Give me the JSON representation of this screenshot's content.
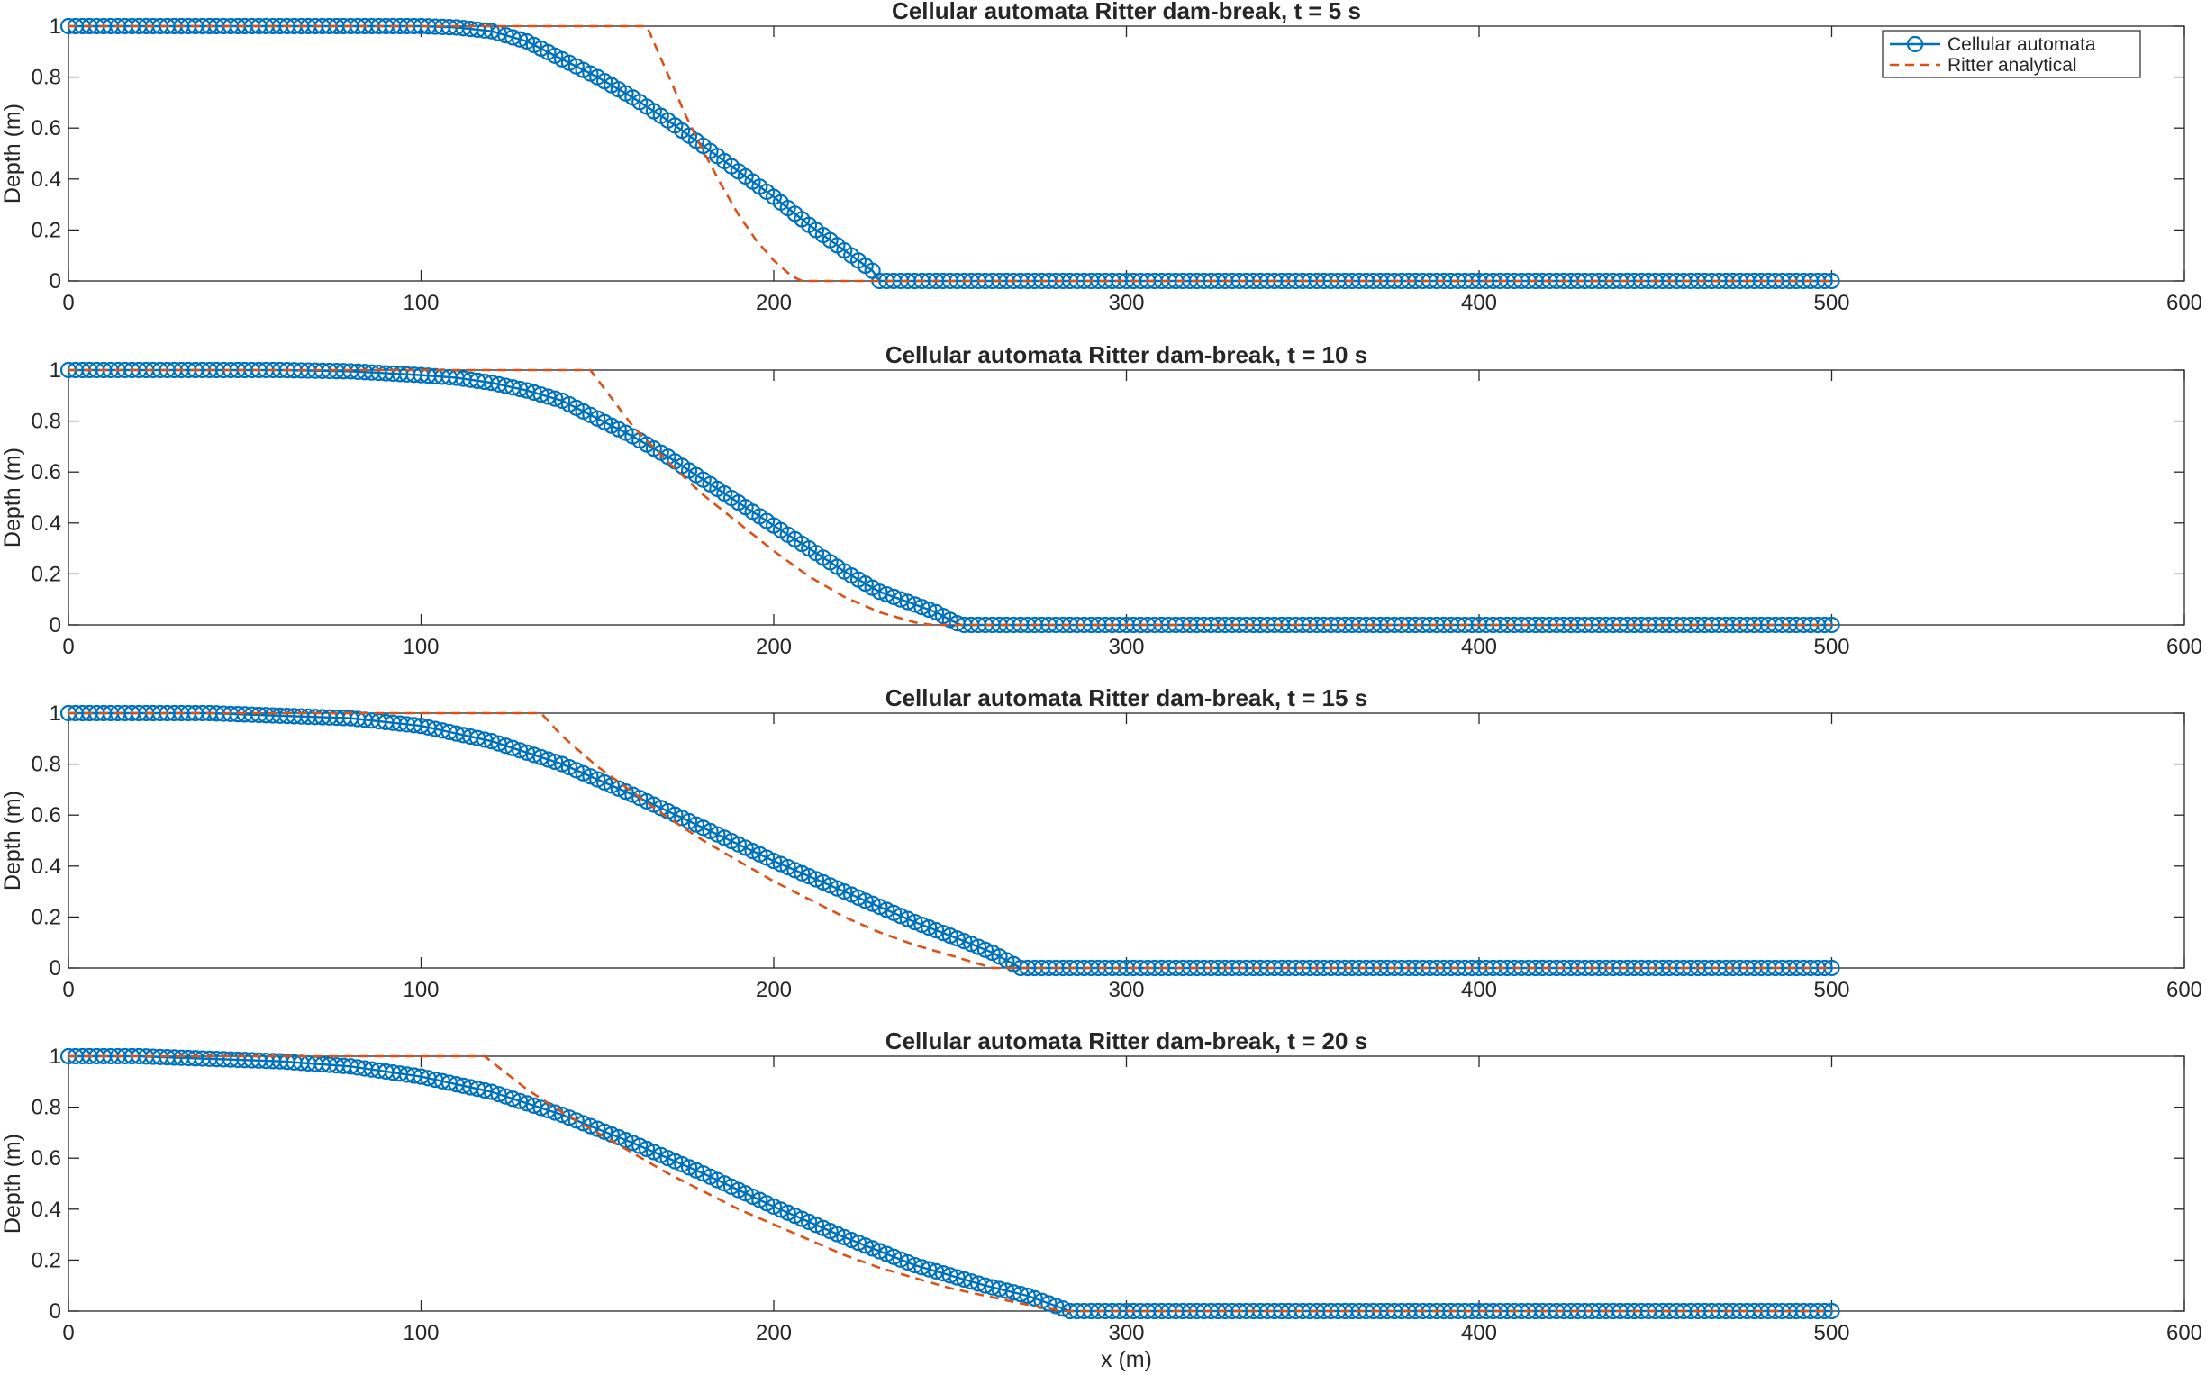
{
  "chart_data": [
    {
      "type": "line",
      "title": "Cellular automata Ritter dam-break, t = 5 s",
      "xlabel": "",
      "ylabel": "Depth (m)",
      "xlim": [
        0,
        600
      ],
      "ylim": [
        0,
        1
      ],
      "xticks": [
        "0",
        "100",
        "200",
        "300",
        "400",
        "500",
        "600"
      ],
      "yticks": [
        "0",
        "0.2",
        "0.4",
        "0.6",
        "0.8",
        "1"
      ],
      "legend_position": "top-right",
      "series": [
        {
          "name": "Cellular automata",
          "color": "#0072BD",
          "marker": "circle",
          "x": [
            0,
            60,
            100,
            110,
            120,
            130,
            140,
            150,
            160,
            170,
            180,
            190,
            200,
            210,
            220,
            225,
            228,
            230,
            300,
            400,
            500
          ],
          "y": [
            1.0,
            1.0,
            1.0,
            0.995,
            0.98,
            0.94,
            0.87,
            0.8,
            0.72,
            0.63,
            0.53,
            0.43,
            0.33,
            0.22,
            0.12,
            0.07,
            0.04,
            0.0,
            0.0,
            0.0,
            0.0
          ]
        },
        {
          "name": "Ritter analytical",
          "color": "#D95319",
          "style": "dashed",
          "x": [
            0,
            150,
            164,
            170,
            175,
            180,
            185,
            190,
            195,
            200,
            205,
            208,
            300,
            400,
            500
          ],
          "y": [
            1.0,
            1.0,
            1.0,
            0.81,
            0.65,
            0.51,
            0.38,
            0.26,
            0.16,
            0.08,
            0.02,
            0.0,
            0.0,
            0.0,
            0.0
          ]
        }
      ]
    },
    {
      "type": "line",
      "title": "Cellular automata Ritter dam-break, t = 10 s",
      "xlabel": "",
      "ylabel": "Depth (m)",
      "xlim": [
        0,
        600
      ],
      "ylim": [
        0,
        1
      ],
      "xticks": [
        "0",
        "100",
        "200",
        "300",
        "400",
        "500",
        "600"
      ],
      "yticks": [
        "0",
        "0.2",
        "0.4",
        "0.6",
        "0.8",
        "1"
      ],
      "series": [
        {
          "name": "Cellular automata",
          "color": "#0072BD",
          "marker": "circle",
          "x": [
            0,
            60,
            80,
            100,
            110,
            120,
            130,
            140,
            150,
            160,
            170,
            180,
            190,
            200,
            210,
            220,
            230,
            240,
            246,
            250,
            253,
            300,
            400,
            500
          ],
          "y": [
            1.0,
            1.0,
            0.995,
            0.98,
            0.97,
            0.95,
            0.92,
            0.88,
            0.81,
            0.74,
            0.66,
            0.57,
            0.48,
            0.39,
            0.3,
            0.21,
            0.13,
            0.08,
            0.05,
            0.02,
            0.0,
            0.0,
            0.0,
            0.0
          ]
        },
        {
          "name": "Ritter analytical",
          "color": "#D95319",
          "style": "dashed",
          "x": [
            0,
            140,
            148,
            160,
            170,
            180,
            190,
            200,
            210,
            220,
            230,
            240,
            245,
            300,
            400,
            500
          ],
          "y": [
            1.0,
            1.0,
            1.0,
            0.78,
            0.64,
            0.51,
            0.4,
            0.29,
            0.19,
            0.11,
            0.05,
            0.01,
            0.0,
            0.0,
            0.0,
            0.0
          ]
        }
      ]
    },
    {
      "type": "line",
      "title": "Cellular automata Ritter dam-break, t = 15 s",
      "xlabel": "",
      "ylabel": "Depth (m)",
      "xlim": [
        0,
        600
      ],
      "ylim": [
        0,
        1
      ],
      "xticks": [
        "0",
        "100",
        "200",
        "300",
        "400",
        "500",
        "600"
      ],
      "yticks": [
        "0",
        "0.2",
        "0.4",
        "0.6",
        "0.8",
        "1"
      ],
      "series": [
        {
          "name": "Cellular automata",
          "color": "#0072BD",
          "marker": "circle",
          "x": [
            0,
            40,
            60,
            80,
            100,
            120,
            140,
            160,
            180,
            200,
            220,
            240,
            255,
            262,
            266,
            270,
            300,
            400,
            500
          ],
          "y": [
            1.0,
            1.0,
            0.99,
            0.98,
            0.95,
            0.89,
            0.8,
            0.68,
            0.55,
            0.42,
            0.3,
            0.18,
            0.1,
            0.06,
            0.03,
            0.0,
            0.0,
            0.0,
            0.0
          ]
        },
        {
          "name": "Ritter analytical",
          "color": "#D95319",
          "style": "dashed",
          "x": [
            0,
            125,
            134,
            140,
            150,
            160,
            170,
            180,
            190,
            200,
            210,
            220,
            230,
            240,
            250,
            262,
            300,
            400,
            500
          ],
          "y": [
            1.0,
            1.0,
            1.0,
            0.91,
            0.79,
            0.69,
            0.59,
            0.5,
            0.42,
            0.34,
            0.27,
            0.2,
            0.14,
            0.09,
            0.05,
            0.0,
            0.0,
            0.0,
            0.0
          ]
        }
      ]
    },
    {
      "type": "line",
      "title": "Cellular automata Ritter dam-break, t = 20 s",
      "xlabel": "x (m)",
      "ylabel": "Depth (m)",
      "xlim": [
        0,
        600
      ],
      "ylim": [
        0,
        1
      ],
      "xticks": [
        "0",
        "100",
        "200",
        "300",
        "400",
        "500",
        "600"
      ],
      "yticks": [
        "0",
        "0.2",
        "0.4",
        "0.6",
        "0.8",
        "1"
      ],
      "series": [
        {
          "name": "Cellular automata",
          "color": "#0072BD",
          "marker": "circle",
          "x": [
            0,
            20,
            40,
            60,
            80,
            100,
            120,
            140,
            160,
            180,
            200,
            220,
            240,
            260,
            272,
            278,
            284,
            300,
            400,
            500
          ],
          "y": [
            1.0,
            1.0,
            0.99,
            0.98,
            0.96,
            0.92,
            0.86,
            0.77,
            0.66,
            0.54,
            0.41,
            0.29,
            0.18,
            0.1,
            0.06,
            0.03,
            0.0,
            0.0,
            0.0,
            0.0
          ]
        },
        {
          "name": "Ritter analytical",
          "color": "#D95319",
          "style": "dashed",
          "x": [
            0,
            110,
            118,
            130,
            140,
            150,
            160,
            170,
            180,
            190,
            200,
            210,
            220,
            230,
            240,
            250,
            260,
            270,
            282,
            300,
            400,
            500
          ],
          "y": [
            1.0,
            1.0,
            1.0,
            0.87,
            0.78,
            0.7,
            0.62,
            0.54,
            0.47,
            0.4,
            0.34,
            0.28,
            0.22,
            0.17,
            0.13,
            0.09,
            0.06,
            0.03,
            0.0,
            0.0,
            0.0,
            0.0
          ]
        }
      ]
    }
  ]
}
